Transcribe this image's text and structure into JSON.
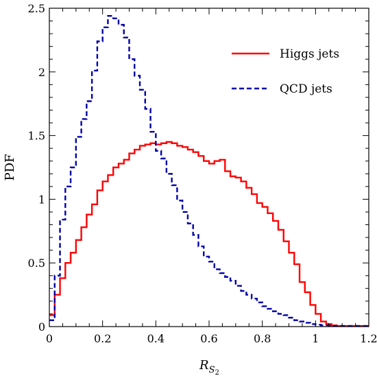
{
  "chart_data": {
    "type": "line",
    "ylabel": "PDF",
    "xlabel_main": "R",
    "xlabel_sub": "S",
    "xlabel_subsub": "2",
    "xlim": [
      0,
      1.2
    ],
    "ylim": [
      0,
      2.5
    ],
    "x_ticks": [
      "0",
      "0.2",
      "0.4",
      "0.6",
      "0.8",
      "1",
      "1.2"
    ],
    "y_ticks": [
      "0",
      "0.5",
      "1",
      "1.5",
      "2",
      "2.5"
    ],
    "legend_position": "top-right",
    "bin_edges": [
      0,
      0.02,
      0.04,
      0.06,
      0.08,
      0.1,
      0.12,
      0.14,
      0.16,
      0.18,
      0.2,
      0.22,
      0.24,
      0.26,
      0.28,
      0.3,
      0.32,
      0.34,
      0.36,
      0.38,
      0.4,
      0.42,
      0.44,
      0.46,
      0.48,
      0.5,
      0.52,
      0.54,
      0.56,
      0.58,
      0.6,
      0.62,
      0.64,
      0.66,
      0.68,
      0.7,
      0.72,
      0.74,
      0.76,
      0.78,
      0.8,
      0.82,
      0.84,
      0.86,
      0.88,
      0.9,
      0.92,
      0.94,
      0.96,
      0.98,
      1.0,
      1.02,
      1.04,
      1.06,
      1.08,
      1.1,
      1.12,
      1.14,
      1.16,
      1.18,
      1.2
    ],
    "series": [
      {
        "name": "Higgs jets",
        "color": "#ff0000",
        "dashed": false,
        "values": [
          0.09,
          0.25,
          0.38,
          0.5,
          0.58,
          0.68,
          0.78,
          0.88,
          0.96,
          1.07,
          1.14,
          1.19,
          1.25,
          1.28,
          1.31,
          1.36,
          1.39,
          1.42,
          1.43,
          1.44,
          1.43,
          1.44,
          1.45,
          1.44,
          1.42,
          1.41,
          1.39,
          1.37,
          1.34,
          1.3,
          1.28,
          1.3,
          1.31,
          1.22,
          1.18,
          1.17,
          1.14,
          1.09,
          1.04,
          0.97,
          0.94,
          0.89,
          0.83,
          0.76,
          0.67,
          0.58,
          0.49,
          0.35,
          0.27,
          0.17,
          0.1,
          0.04,
          0.02,
          0.01,
          0.005,
          0.005,
          0.005,
          0.005,
          0.005,
          0.005
        ]
      },
      {
        "name": "QCD jets",
        "color": "#0000aa",
        "dashed": true,
        "values": [
          0.05,
          0.4,
          0.84,
          1.1,
          1.25,
          1.49,
          1.63,
          1.77,
          2.01,
          2.24,
          2.35,
          2.44,
          2.42,
          2.37,
          2.27,
          2.1,
          1.97,
          1.86,
          1.71,
          1.53,
          1.38,
          1.32,
          1.2,
          1.11,
          0.99,
          0.9,
          0.81,
          0.72,
          0.63,
          0.55,
          0.51,
          0.45,
          0.42,
          0.39,
          0.36,
          0.32,
          0.28,
          0.25,
          0.22,
          0.19,
          0.16,
          0.14,
          0.12,
          0.1,
          0.09,
          0.07,
          0.05,
          0.04,
          0.03,
          0.02,
          0.015,
          0.01,
          0.01,
          0.005,
          0.005,
          0.005,
          0.005,
          0.005,
          0.005,
          0.005
        ]
      }
    ]
  }
}
